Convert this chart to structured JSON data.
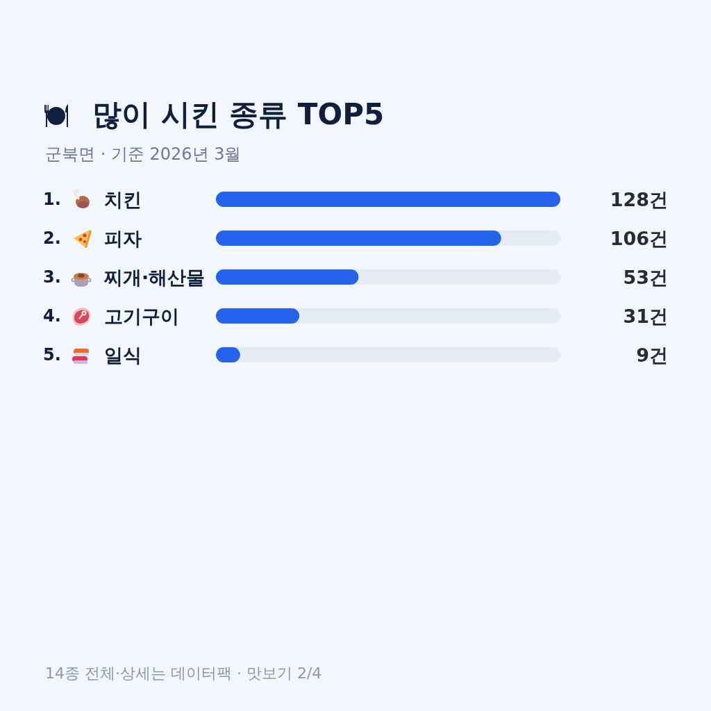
{
  "chart_data": {
    "type": "bar",
    "orientation": "horizontal",
    "title": "많이 시킨 종류 TOP5",
    "subtitle": "군북면 · 기준 2026년 3월",
    "categories": [
      "1. 치킨",
      "2. 피자",
      "3. 찌개·해산물",
      "4. 고기구이",
      "5. 일식"
    ],
    "values": [
      128,
      106,
      53,
      31,
      9
    ],
    "value_labels": [
      "128건",
      "106건",
      "53건",
      "31건",
      "9건"
    ],
    "color": "#2563eb",
    "xlim": [
      0,
      128
    ],
    "tick_labels": "y",
    "annotations": [
      "14종 전체·상세는 데이터팩 · 맛보기 2/4"
    ]
  }
}
